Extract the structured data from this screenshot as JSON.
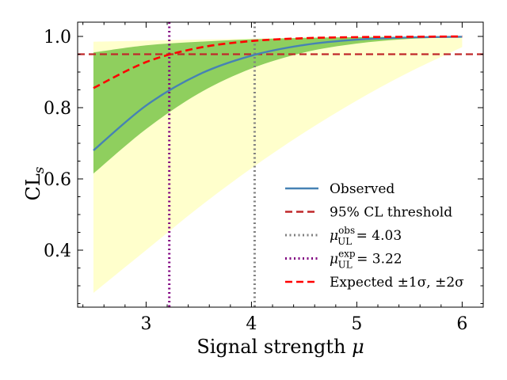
{
  "chart_data": {
    "type": "line",
    "xlabel": "Signal strength μ",
    "ylabel": "CL_s",
    "xlim": [
      2.35,
      6.2
    ],
    "ylim": [
      0.24,
      1.04
    ],
    "x_ticks": [
      3,
      4,
      5,
      6
    ],
    "x_tick_labels": [
      "3",
      "4",
      "5",
      "6"
    ],
    "y_ticks": [
      0.4,
      0.6,
      0.8,
      1.0
    ],
    "y_tick_labels": [
      "0.4",
      "0.6",
      "0.8",
      "1.0"
    ],
    "x": [
      2.5,
      3.0,
      3.5,
      4.0,
      4.5,
      5.0,
      5.5,
      6.0
    ],
    "series": [
      {
        "name": "Observed",
        "color": "#4682b4",
        "style": "solid",
        "values": [
          0.68,
          0.806,
          0.893,
          0.946,
          0.976,
          0.991,
          0.997,
          0.999
        ]
      },
      {
        "name": "Expected ±1σ, ±2σ",
        "color": "#ff0000",
        "style": "dashed",
        "values": [
          0.855,
          0.928,
          0.968,
          0.987,
          0.995,
          0.998,
          0.999,
          1.0
        ]
      }
    ],
    "bands": [
      {
        "name": "2σ",
        "color": "#ffffcc",
        "upper": [
          0.985,
          0.988,
          0.991,
          0.994,
          0.996,
          0.998,
          0.999,
          1.0
        ],
        "lower": [
          0.28,
          0.4,
          0.52,
          0.63,
          0.73,
          0.82,
          0.9,
          0.97
        ]
      },
      {
        "name": "1σ",
        "color": "#8fcf5e",
        "upper": [
          0.955,
          0.975,
          0.985,
          0.992,
          0.996,
          0.998,
          0.999,
          1.0
        ],
        "lower": [
          0.615,
          0.74,
          0.84,
          0.91,
          0.955,
          0.98,
          0.993,
          0.998
        ]
      }
    ],
    "hlines": [
      {
        "name": "95% CL threshold",
        "y": 0.95,
        "color": "#c0282a",
        "style": "dashed"
      }
    ],
    "vlines": [
      {
        "name": "μ_UL^obs = 4.03",
        "x": 4.03,
        "color": "#808080",
        "style": "dotted"
      },
      {
        "name": "μ_UL^exp = 3.22",
        "x": 3.22,
        "color": "#800080",
        "style": "dotted"
      }
    ],
    "legend": {
      "position": "lower-right",
      "entries": [
        {
          "label": "Observed",
          "color": "#4682b4",
          "style": "solid"
        },
        {
          "label": "95% CL threshold",
          "color": "#c0282a",
          "style": "dashed"
        },
        {
          "label_base": "μ",
          "label_sup": "obs",
          "label_sub": "UL",
          "label_rest": " = 4.03",
          "color": "#808080",
          "style": "dotted"
        },
        {
          "label_base": "μ",
          "label_sup": "exp",
          "label_sub": "UL",
          "label_rest": " = 3.22",
          "color": "#800080",
          "style": "dotted"
        },
        {
          "label": "Expected ±1σ, ±2σ",
          "color": "#ff0000",
          "style": "dashed"
        }
      ]
    }
  }
}
